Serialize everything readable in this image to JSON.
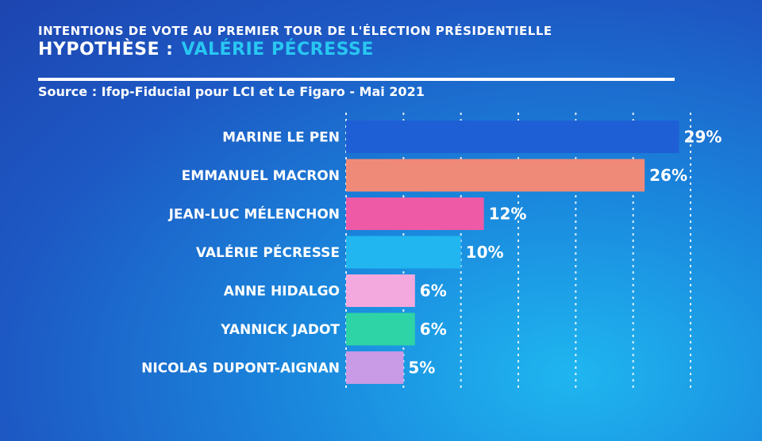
{
  "header": {
    "title": "INTENTIONS DE VOTE AU PREMIER TOUR DE L'ÉLECTION PRÉSIDENTIELLE",
    "subtitle_prefix": "HYPOTHÈSE :",
    "subtitle_name": "VALÉRIE PÉCRESSE",
    "source": "Source : Ifop-Fiducial pour LCI et Le Figaro - Mai 2021"
  },
  "chart_data": {
    "type": "bar",
    "orientation": "horizontal",
    "title": "INTENTIONS DE VOTE AU PREMIER TOUR DE L'ÉLECTION PRÉSIDENTIELLE",
    "subtitle": "HYPOTHÈSE : VALÉRIE PÉCRESSE",
    "categories": [
      "MARINE LE PEN",
      "EMMANUEL MACRON",
      "JEAN-LUC MÉLENCHON",
      "VALÉRIE PÉCRESSE",
      "ANNE HIDALGO",
      "YANNICK JADOT",
      "NICOLAS DUPONT-AIGNAN"
    ],
    "values": [
      29,
      26,
      12,
      10,
      6,
      6,
      5
    ],
    "value_labels": [
      "29%",
      "26%",
      "12%",
      "10%",
      "6%",
      "6%",
      "5%"
    ],
    "colors": [
      "#1f5fd6",
      "#f08a78",
      "#ee5aa6",
      "#22b6f0",
      "#f4a9de",
      "#2ed3a6",
      "#c99ae6"
    ],
    "xlim": [
      0,
      30
    ],
    "gridlines": [
      5,
      10,
      15,
      20,
      25,
      30
    ],
    "grid": true,
    "gridline_style": "dotted"
  }
}
